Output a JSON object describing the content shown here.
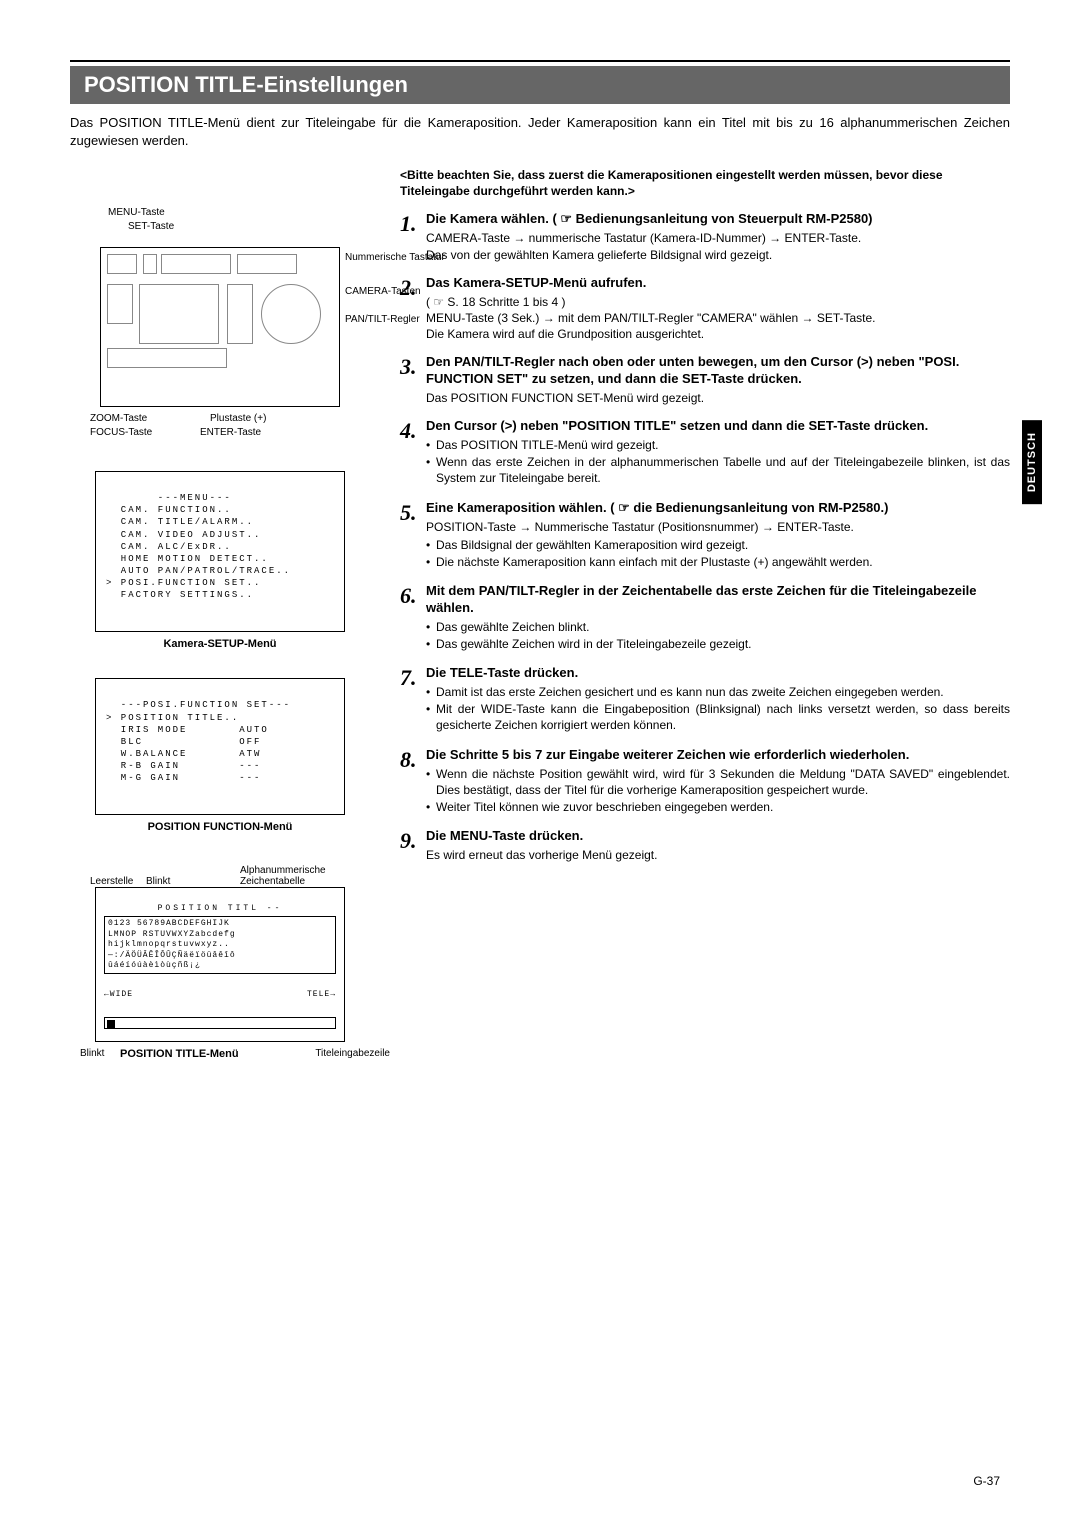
{
  "header": {
    "title": "POSITION TITLE-Einstellungen"
  },
  "intro": "Das POSITION TITLE-Menü dient zur Titeleingabe für die Kameraposition. Jeder Kameraposition kann ein Titel mit bis zu 16 alphanummerischen Zeichen zugewiesen werden.",
  "diagram": {
    "labels": {
      "menu_btn": "MENU-Taste",
      "set_btn": "SET-Taste",
      "num_kbd": "Nummerische Tastatur",
      "camera_btns": "CAMERA-Tasten",
      "pantilt": "PAN/TILT-Regler",
      "zoom": "ZOOM-Taste",
      "plus": "Plustaste (+)",
      "focus": "FOCUS-Taste",
      "enter": "ENTER-Taste"
    }
  },
  "menu1": {
    "caption": "Kamera-SETUP-Menü",
    "text": "       ---MENU---\n  CAM. FUNCTION..\n  CAM. TITLE/ALARM..\n  CAM. VIDEO ADJUST..\n  CAM. ALC/ExDR..\n  HOME MOTION DETECT..\n  AUTO PAN/PATROL/TRACE..\n> POSI.FUNCTION SET..\n  FACTORY SETTINGS.."
  },
  "menu2": {
    "caption": "POSITION FUNCTION-Menü",
    "text": "  ---POSI.FUNCTION SET---\n> POSITION TITLE..\n  IRIS MODE       AUTO\n  BLC             OFF\n  W.BALANCE       ATW\n  R-B GAIN        ---\n  M-G GAIN        ---"
  },
  "menu3": {
    "caption": "POSITION TITLE-Menü",
    "top_labels": {
      "leerstelle": "Leerstelle",
      "blinkt": "Blinkt",
      "zeichentabelle": "Alphanummerische Zeichentabelle"
    },
    "header_line": "        POSITION TITL --",
    "row1": "  0123 56789ABCDEFGHIJK",
    "row2": "LMNOP RSTUVWXYZabcdefg",
    "row3": "hijklmnopqrstuvwxyz..",
    "row4": "—:/ÄÖÜÂÊÎÔÛÇÑäëïöüâêîô",
    "row5": "ûáéíóúàèìòùçñß¡¿",
    "wide": "←WIDE",
    "tele": "TELE→",
    "bot_blinkt": "Blinkt",
    "bot_titel": "Titeleingabezeile"
  },
  "side_tab": "DEUTSCH",
  "note": "<Bitte beachten Sie, dass zuerst die Kamerapositionen eingestellt werden müssen, bevor diese Titeleingabe durchgeführt werden kann.>",
  "steps": [
    {
      "n": "1.",
      "head": "Die Kamera wählen. ( ☞ Bedienungsanleitung von Steuerpult RM-P2580)",
      "detail": "CAMERA-Taste → nummerische Tastatur (Kamera-ID-Nummer) → ENTER-Taste.\nDas von der gewählten Kamera gelieferte Bildsignal wird gezeigt."
    },
    {
      "n": "2.",
      "head": "Das Kamera-SETUP-Menü aufrufen.",
      "detail": "( ☞ S. 18 Schritte 1 bis 4 )\nMENU-Taste (3 Sek.) → mit dem PAN/TILT-Regler \"CAMERA\" wählen → SET-Taste.\nDie Kamera wird auf die Grundposition ausgerichtet."
    },
    {
      "n": "3.",
      "head": "Den PAN/TILT-Regler nach oben oder unten bewegen, um den Cursor (>) neben \"POSI. FUNCTION SET\" zu setzen, und dann die SET-Taste drücken.",
      "detail": "Das POSITION FUNCTION SET-Menü wird gezeigt."
    },
    {
      "n": "4.",
      "head": "Den Cursor (>) neben \"POSITION TITLE\" setzen und dann die SET-Taste drücken.",
      "bullets": [
        "Das POSITION TITLE-Menü wird gezeigt.",
        "Wenn das erste Zeichen in der alphanummerischen Tabelle und auf der Titeleingabezeile blinken, ist das System zur Titeleingabe bereit."
      ]
    },
    {
      "n": "5.",
      "head": "Eine Kameraposition wählen. ( ☞ die Bedienungsanleitung von RM-P2580.)",
      "detail": "POSITION-Taste → Nummerische Tastatur (Positionsnummer) → ENTER-Taste.",
      "bullets": [
        "Das Bildsignal der gewählten Kameraposition wird gezeigt.",
        "Die nächste Kameraposition kann einfach mit der Plustaste (+) angewählt werden."
      ]
    },
    {
      "n": "6.",
      "head": "Mit dem PAN/TILT-Regler in der Zeichentabelle das erste Zeichen für die Titeleingabezeile wählen.",
      "bullets": [
        "Das gewählte Zeichen blinkt.",
        "Das gewählte Zeichen wird in der Titeleingabezeile gezeigt."
      ]
    },
    {
      "n": "7.",
      "head": "Die TELE-Taste drücken.",
      "bullets": [
        "Damit ist das erste Zeichen gesichert und es kann nun das zweite Zeichen eingegeben werden.",
        "Mit der WIDE-Taste kann die Eingabeposition (Blinksignal) nach links versetzt werden, so dass bereits gesicherte Zeichen korrigiert werden können."
      ]
    },
    {
      "n": "8.",
      "head": "Die Schritte 5 bis 7 zur Eingabe weiterer Zeichen wie erforderlich wiederholen.",
      "bullets": [
        "Wenn die nächste Position gewählt wird, wird für 3 Sekunden die Meldung \"DATA SAVED\" eingeblendet. Dies bestätigt, dass der Titel für die vorherige Kameraposition gespeichert wurde.",
        "Weiter Titel können wie zuvor beschrieben eingegeben werden."
      ]
    },
    {
      "n": "9.",
      "head": "Die MENU-Taste drücken.",
      "detail": "Es wird erneut das vorherige Menü gezeigt."
    }
  ],
  "page_num": "G-37"
}
